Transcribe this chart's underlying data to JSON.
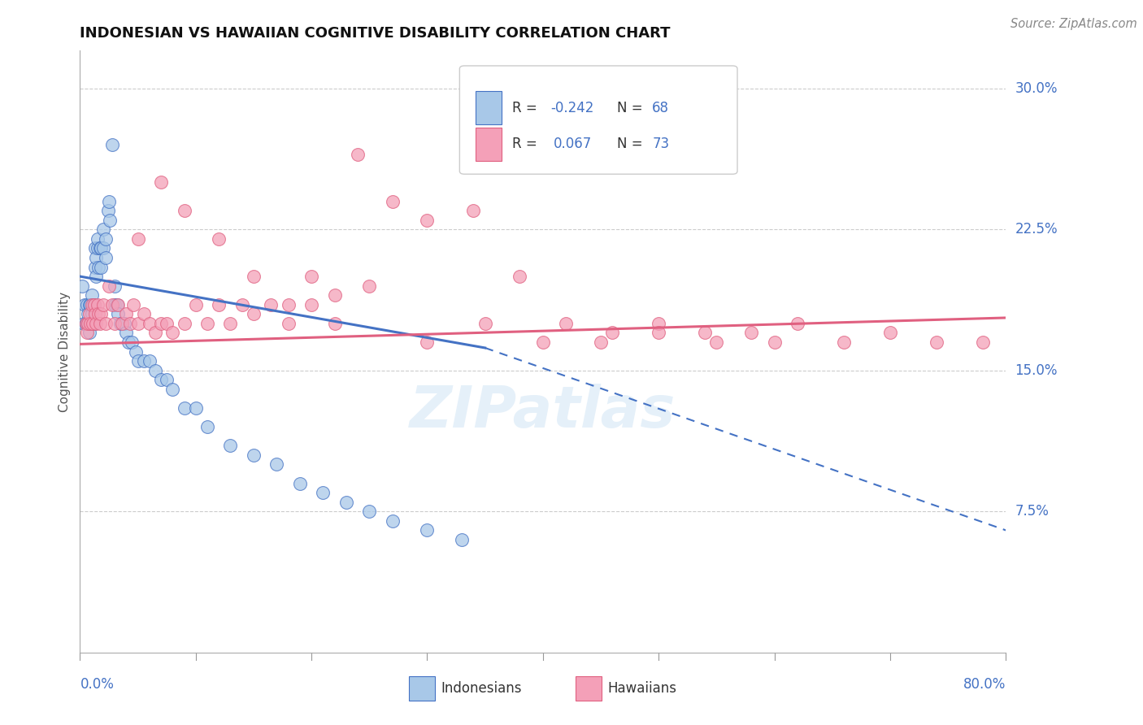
{
  "title": "INDONESIAN VS HAWAIIAN COGNITIVE DISABILITY CORRELATION CHART",
  "source": "Source: ZipAtlas.com",
  "ylabel": "Cognitive Disability",
  "xmin": 0.0,
  "xmax": 0.8,
  "ymin": 0.0,
  "ymax": 0.32,
  "R_indonesian": -0.242,
  "N_indonesian": 68,
  "R_hawaiian": 0.067,
  "N_hawaiian": 73,
  "color_indonesian": "#a8c8e8",
  "color_hawaiian": "#f4a0b8",
  "color_indonesian_line": "#4472c4",
  "color_hawaiian_line": "#e06080",
  "color_blue_text": "#4472c4",
  "watermark": "ZIPatlas",
  "indonesian_x": [
    0.002,
    0.003,
    0.004,
    0.005,
    0.005,
    0.006,
    0.006,
    0.007,
    0.007,
    0.008,
    0.008,
    0.008,
    0.009,
    0.009,
    0.01,
    0.01,
    0.011,
    0.011,
    0.012,
    0.012,
    0.013,
    0.013,
    0.014,
    0.014,
    0.015,
    0.015,
    0.016,
    0.017,
    0.018,
    0.018,
    0.02,
    0.02,
    0.022,
    0.022,
    0.024,
    0.025,
    0.026,
    0.028,
    0.03,
    0.03,
    0.032,
    0.033,
    0.035,
    0.038,
    0.04,
    0.042,
    0.045,
    0.048,
    0.05,
    0.055,
    0.06,
    0.065,
    0.07,
    0.075,
    0.08,
    0.09,
    0.1,
    0.11,
    0.13,
    0.15,
    0.17,
    0.19,
    0.21,
    0.23,
    0.25,
    0.27,
    0.3,
    0.33
  ],
  "indonesian_y": [
    0.195,
    0.175,
    0.185,
    0.175,
    0.175,
    0.185,
    0.175,
    0.18,
    0.175,
    0.185,
    0.175,
    0.17,
    0.185,
    0.175,
    0.19,
    0.18,
    0.185,
    0.175,
    0.185,
    0.175,
    0.215,
    0.205,
    0.21,
    0.2,
    0.215,
    0.22,
    0.205,
    0.215,
    0.215,
    0.205,
    0.225,
    0.215,
    0.22,
    0.21,
    0.235,
    0.24,
    0.23,
    0.27,
    0.195,
    0.185,
    0.185,
    0.18,
    0.175,
    0.175,
    0.17,
    0.165,
    0.165,
    0.16,
    0.155,
    0.155,
    0.155,
    0.15,
    0.145,
    0.145,
    0.14,
    0.13,
    0.13,
    0.12,
    0.11,
    0.105,
    0.1,
    0.09,
    0.085,
    0.08,
    0.075,
    0.07,
    0.065,
    0.06
  ],
  "hawaiian_x": [
    0.005,
    0.006,
    0.007,
    0.008,
    0.009,
    0.01,
    0.011,
    0.012,
    0.013,
    0.014,
    0.015,
    0.016,
    0.017,
    0.018,
    0.02,
    0.022,
    0.025,
    0.028,
    0.03,
    0.033,
    0.036,
    0.04,
    0.043,
    0.046,
    0.05,
    0.055,
    0.06,
    0.065,
    0.07,
    0.075,
    0.08,
    0.09,
    0.1,
    0.11,
    0.12,
    0.13,
    0.14,
    0.15,
    0.165,
    0.18,
    0.2,
    0.22,
    0.24,
    0.27,
    0.3,
    0.34,
    0.38,
    0.42,
    0.46,
    0.5,
    0.54,
    0.58,
    0.62,
    0.66,
    0.7,
    0.74,
    0.78,
    0.3,
    0.35,
    0.4,
    0.45,
    0.5,
    0.55,
    0.6,
    0.05,
    0.07,
    0.09,
    0.12,
    0.15,
    0.2,
    0.25,
    0.18,
    0.22
  ],
  "hawaiian_y": [
    0.175,
    0.17,
    0.175,
    0.18,
    0.175,
    0.185,
    0.175,
    0.185,
    0.18,
    0.175,
    0.185,
    0.18,
    0.175,
    0.18,
    0.185,
    0.175,
    0.195,
    0.185,
    0.175,
    0.185,
    0.175,
    0.18,
    0.175,
    0.185,
    0.175,
    0.18,
    0.175,
    0.17,
    0.175,
    0.175,
    0.17,
    0.175,
    0.185,
    0.175,
    0.185,
    0.175,
    0.185,
    0.18,
    0.185,
    0.175,
    0.185,
    0.175,
    0.265,
    0.24,
    0.23,
    0.235,
    0.2,
    0.175,
    0.17,
    0.175,
    0.17,
    0.17,
    0.175,
    0.165,
    0.17,
    0.165,
    0.165,
    0.165,
    0.175,
    0.165,
    0.165,
    0.17,
    0.165,
    0.165,
    0.22,
    0.25,
    0.235,
    0.22,
    0.2,
    0.2,
    0.195,
    0.185,
    0.19
  ]
}
